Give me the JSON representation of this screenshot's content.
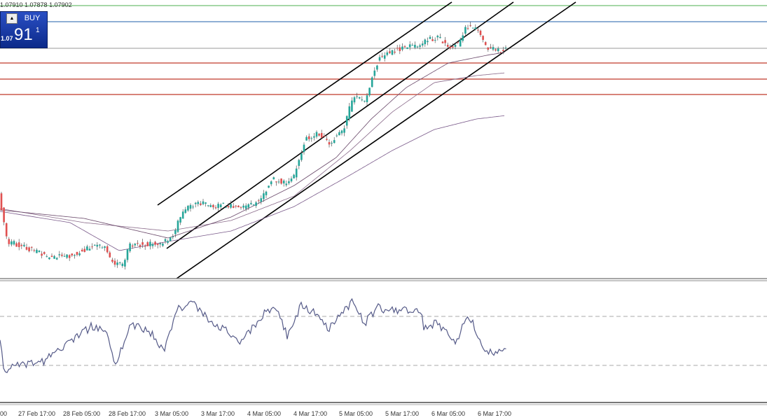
{
  "header": {
    "quote": "1.07910 1.07878 1.07902"
  },
  "trade_panel": {
    "arrow": "▲",
    "button": "BUY",
    "price_prefix": "1.07",
    "price_big": "91",
    "price_super": "1"
  },
  "x_axis": {
    "labels": [
      "00",
      "27 Feb 17:00",
      "28 Feb 05:00",
      "28 Feb 17:00",
      "3 Mar 05:00",
      "3 Mar 17:00",
      "4 Mar 05:00",
      "4 Mar 17:00",
      "5 Mar 05:00",
      "5 Mar 17:00",
      "6 Mar 05:00",
      "6 Mar 17:00"
    ]
  }
}
